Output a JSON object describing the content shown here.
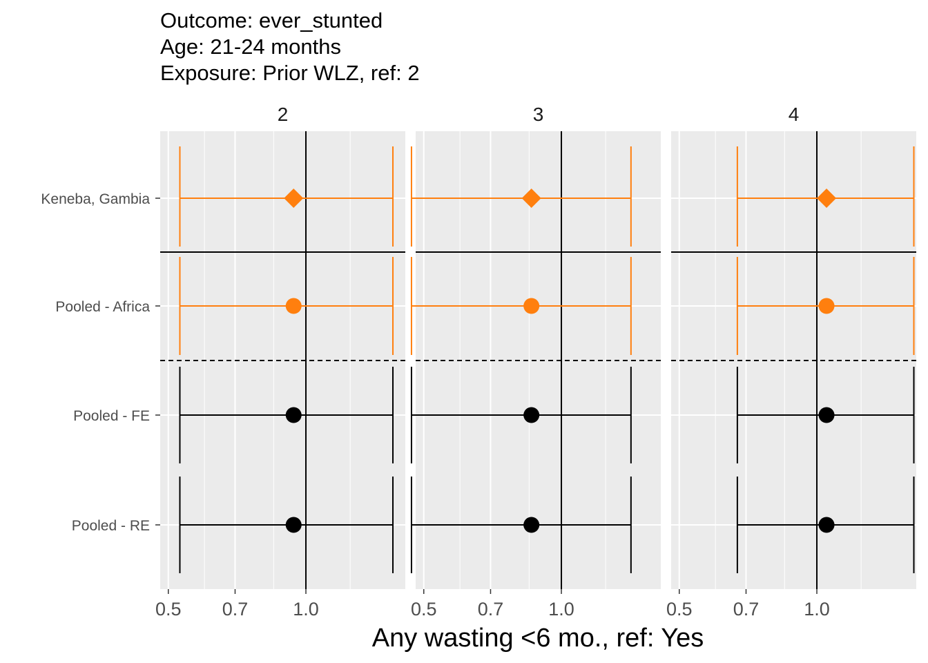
{
  "titles": {
    "line1": "Outcome: ever_stunted",
    "line2": "Age: 21-24 months",
    "line3": "Exposure: Prior WLZ, ref: 2"
  },
  "chart_data": {
    "type": "forest",
    "facet_labels": [
      "2",
      "3",
      "4"
    ],
    "rows": [
      "Keneba, Gambia",
      "Pooled - Africa",
      "Pooled - FE",
      "Pooled - RE"
    ],
    "x_scale": "log",
    "xlim": [
      0.48,
      1.65
    ],
    "x_ticks": [
      0.5,
      0.7,
      1.0
    ],
    "x_tick_labels": [
      "0.5",
      "0.7",
      "1.0"
    ],
    "reference_line": 1.0,
    "xlabel": "Any wasting  <6 mo., ref: Yes",
    "ylabel": "",
    "colors": {
      "cohort": "#ff7f0e",
      "pooled": "#000000",
      "panel_bg": "#ebebeb",
      "grid": "#ffffff"
    },
    "facets": [
      {
        "label": "2",
        "estimates": [
          {
            "row": "Keneba, Gambia",
            "est": 0.94,
            "lb": 0.53,
            "ub": 1.55,
            "shape": "diamond",
            "group": "cohort"
          },
          {
            "row": "Pooled - Africa",
            "est": 0.94,
            "lb": 0.53,
            "ub": 1.55,
            "shape": "circle",
            "group": "cohort"
          },
          {
            "row": "Pooled - FE",
            "est": 0.94,
            "lb": 0.53,
            "ub": 1.55,
            "shape": "circle",
            "group": "pooled"
          },
          {
            "row": "Pooled - RE",
            "est": 0.94,
            "lb": 0.53,
            "ub": 1.55,
            "shape": "circle",
            "group": "pooled"
          }
        ]
      },
      {
        "label": "3",
        "estimates": [
          {
            "row": "Keneba, Gambia",
            "est": 0.86,
            "lb": 0.47,
            "ub": 1.42,
            "shape": "diamond",
            "group": "cohort"
          },
          {
            "row": "Pooled - Africa",
            "est": 0.86,
            "lb": 0.47,
            "ub": 1.42,
            "shape": "circle",
            "group": "cohort"
          },
          {
            "row": "Pooled - FE",
            "est": 0.86,
            "lb": 0.47,
            "ub": 1.42,
            "shape": "circle",
            "group": "pooled"
          },
          {
            "row": "Pooled - RE",
            "est": 0.86,
            "lb": 0.47,
            "ub": 1.42,
            "shape": "circle",
            "group": "pooled"
          }
        ]
      },
      {
        "label": "4",
        "estimates": [
          {
            "row": "Keneba, Gambia",
            "est": 1.05,
            "lb": 0.67,
            "ub": 1.63,
            "shape": "diamond",
            "group": "cohort"
          },
          {
            "row": "Pooled - Africa",
            "est": 1.05,
            "lb": 0.67,
            "ub": 1.63,
            "shape": "circle",
            "group": "cohort"
          },
          {
            "row": "Pooled - FE",
            "est": 1.05,
            "lb": 0.67,
            "ub": 1.63,
            "shape": "circle",
            "group": "pooled"
          },
          {
            "row": "Pooled - RE",
            "est": 1.05,
            "lb": 0.67,
            "ub": 1.63,
            "shape": "circle",
            "group": "pooled"
          }
        ]
      }
    ]
  }
}
